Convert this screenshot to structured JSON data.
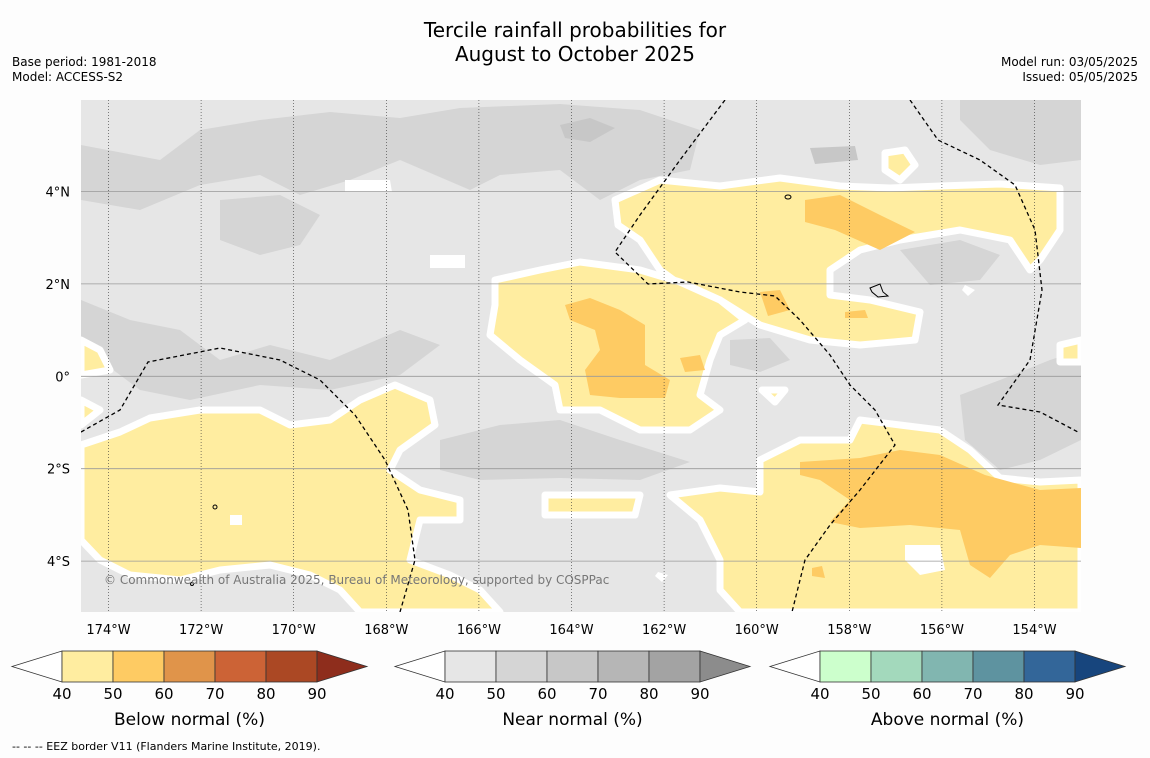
{
  "title": {
    "line1": "Tercile rainfall probabilities for",
    "line2": "August to October 2025"
  },
  "meta_left": {
    "base_period": "Base period: 1981-2018",
    "model": "Model: ACCESS-S2"
  },
  "meta_right": {
    "model_run": "Model run: 03/05/2025",
    "issued": "Issued: 05/05/2025"
  },
  "map": {
    "lon_ticks": [
      "174°W",
      "172°W",
      "170°W",
      "168°W",
      "166°W",
      "164°W",
      "162°W",
      "160°W",
      "158°W",
      "156°W",
      "154°W"
    ],
    "lat_ticks": [
      "4°N",
      "2°N",
      "0°",
      "2°S",
      "4°S"
    ],
    "copyright": "© Commonwealth of Australia 2025, Bureau of Meteorology, supported by COSPPac"
  },
  "legends": [
    {
      "label": "Below normal (%)",
      "ticks": [
        "40",
        "50",
        "60",
        "70",
        "80",
        "90"
      ],
      "colors": [
        "#ffeda0",
        "#fecb63",
        "#e0944a",
        "#cc6336",
        "#ab4824",
        "#8e2d1c"
      ]
    },
    {
      "label": "Near normal (%)",
      "ticks": [
        "40",
        "50",
        "60",
        "70",
        "80",
        "90"
      ],
      "colors": [
        "#e6e6e6",
        "#d5d5d5",
        "#c7c7c7",
        "#b6b6b6",
        "#a3a3a3",
        "#8c8c8c"
      ]
    },
    {
      "label": "Above normal (%)",
      "ticks": [
        "40",
        "50",
        "60",
        "70",
        "80",
        "90"
      ],
      "colors": [
        "#ccffcc",
        "#a3d9bc",
        "#81b6b0",
        "#5e93a0",
        "#336699",
        "#17457d"
      ]
    }
  ],
  "footer": "--  --  -- EEZ border V11 (Flanders Marine Institute, 2019)."
}
